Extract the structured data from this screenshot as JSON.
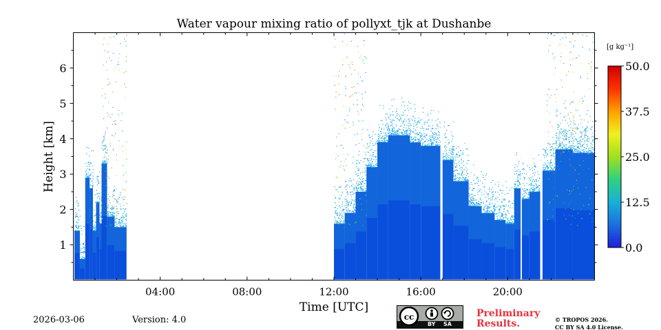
{
  "chart_data": {
    "type": "heatmap",
    "title": "Water vapour mixing ratio of pollyxt_tjk at Dushanbe",
    "xlabel": "Time [UTC]",
    "ylabel": "Height [km]",
    "x_range_hours": [
      0,
      24
    ],
    "xticks": [
      {
        "hour": 4,
        "label": "04:00"
      },
      {
        "hour": 8,
        "label": "08:00"
      },
      {
        "hour": 12,
        "label": "12:00"
      },
      {
        "hour": 16,
        "label": "16:00"
      },
      {
        "hour": 20,
        "label": "20:00"
      }
    ],
    "ylim": [
      0,
      7
    ],
    "yticks": [
      {
        "value": 1,
        "label": "1"
      },
      {
        "value": 2,
        "label": "2"
      },
      {
        "value": 3,
        "label": "3"
      },
      {
        "value": 4,
        "label": "4"
      },
      {
        "value": 5,
        "label": "5"
      },
      {
        "value": 6,
        "label": "6"
      }
    ],
    "colorbar": {
      "unit": "[g kg⁻¹]",
      "range": [
        0,
        50
      ],
      "ticks": [
        {
          "value": 0,
          "label": "0.0"
        },
        {
          "value": 12.5,
          "label": "12.5"
        },
        {
          "value": 25,
          "label": "25.0"
        },
        {
          "value": 37.5,
          "label": "37.5"
        },
        {
          "value": 50,
          "label": "50.0"
        }
      ]
    },
    "columns": [
      {
        "start": 0.05,
        "end": 0.3,
        "top_km": 1.4
      },
      {
        "start": 0.3,
        "end": 0.55,
        "top_km": 0.6
      },
      {
        "start": 0.55,
        "end": 0.75,
        "top_km": 2.9
      },
      {
        "start": 0.75,
        "end": 0.9,
        "top_km": 2.6
      },
      {
        "start": 0.9,
        "end": 1.05,
        "top_km": 1.4
      },
      {
        "start": 1.05,
        "end": 1.2,
        "top_km": 2.2
      },
      {
        "start": 1.2,
        "end": 1.3,
        "top_km": 1.6
      },
      {
        "start": 1.3,
        "end": 1.55,
        "top_km": 3.3
      },
      {
        "start": 1.55,
        "end": 1.9,
        "top_km": 1.8
      },
      {
        "start": 1.9,
        "end": 2.45,
        "top_km": 1.5
      },
      {
        "start": 12.0,
        "end": 12.5,
        "top_km": 1.6
      },
      {
        "start": 12.5,
        "end": 13.0,
        "top_km": 1.9
      },
      {
        "start": 13.0,
        "end": 13.5,
        "top_km": 2.5
      },
      {
        "start": 13.5,
        "end": 14.0,
        "top_km": 3.2
      },
      {
        "start": 14.0,
        "end": 14.5,
        "top_km": 3.9
      },
      {
        "start": 14.5,
        "end": 15.5,
        "top_km": 4.1
      },
      {
        "start": 15.5,
        "end": 16.0,
        "top_km": 3.9
      },
      {
        "start": 16.0,
        "end": 16.9,
        "top_km": 3.8
      },
      {
        "start": 17.0,
        "end": 17.5,
        "top_km": 3.4
      },
      {
        "start": 17.5,
        "end": 18.2,
        "top_km": 2.8
      },
      {
        "start": 18.2,
        "end": 18.8,
        "top_km": 2.1
      },
      {
        "start": 18.8,
        "end": 19.4,
        "top_km": 1.9
      },
      {
        "start": 19.4,
        "end": 19.9,
        "top_km": 1.7
      },
      {
        "start": 19.9,
        "end": 20.3,
        "top_km": 1.6
      },
      {
        "start": 20.3,
        "end": 20.6,
        "top_km": 2.6
      },
      {
        "start": 20.65,
        "end": 21.0,
        "top_km": 2.3
      },
      {
        "start": 21.0,
        "end": 21.5,
        "top_km": 2.5
      },
      {
        "start": 21.6,
        "end": 22.2,
        "top_km": 3.1
      },
      {
        "start": 22.2,
        "end": 23.0,
        "top_km": 3.7
      },
      {
        "start": 23.0,
        "end": 24.0,
        "top_km": 3.6
      }
    ],
    "gaps_hours": [
      [
        16.9,
        17.0
      ],
      [
        20.6,
        20.65
      ],
      [
        21.5,
        21.6
      ]
    ]
  },
  "footer": {
    "date": "2026-03-06",
    "version": "Version: 4.0",
    "preliminary_line1": "Preliminary",
    "preliminary_line2": "Results.",
    "copyright_line1": "© TROPOS 2026.",
    "copyright_line2": "CC BY SA 4.0 License."
  },
  "license_badge": {
    "cc": "cc",
    "by": "BY",
    "sa": "SA"
  },
  "colors": {
    "low": "#0a4fdc",
    "mid": "#1a78d8",
    "noise": [
      "#1e90ff",
      "#20c0d0",
      "#40d060",
      "#d0e020",
      "#ff8000"
    ],
    "colorbar_stops": [
      "#1f1fd6",
      "#1a6fe0",
      "#18b0d8",
      "#30d080",
      "#a0e020",
      "#f0f020",
      "#ffa000",
      "#ff3000",
      "#d00000"
    ]
  }
}
